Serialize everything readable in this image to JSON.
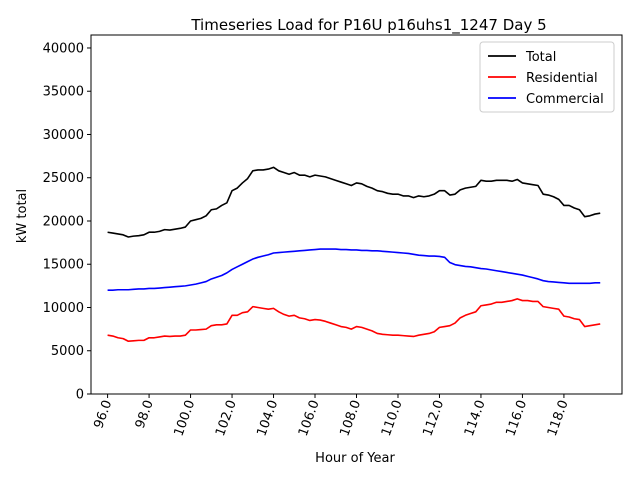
{
  "chart_data": {
    "type": "line",
    "title": "Timeseries Load for P16U p16uhs1_1247  Day 5",
    "xlabel": "Hour of Year",
    "ylabel": "kW total",
    "xlim": [
      95.2,
      120.8
    ],
    "ylim": [
      0,
      41500
    ],
    "x_ticks": [
      96,
      98,
      100,
      102,
      104,
      106,
      108,
      110,
      112,
      114,
      116,
      118
    ],
    "x_tick_labels": [
      "96.0",
      "98.0",
      "100.0",
      "102.0",
      "104.0",
      "106.0",
      "108.0",
      "110.0",
      "112.0",
      "114.0",
      "116.0",
      "118.0"
    ],
    "y_ticks": [
      0,
      5000,
      10000,
      15000,
      20000,
      25000,
      30000,
      35000,
      40000
    ],
    "y_tick_labels": [
      "0",
      "5000",
      "10000",
      "15000",
      "20000",
      "25000",
      "30000",
      "35000",
      "40000"
    ],
    "legend_position": "top-right",
    "series": [
      {
        "name": "Total",
        "color": "#000000",
        "points": [
          [
            96.0,
            18700
          ],
          [
            96.25,
            18600
          ],
          [
            96.5,
            18500
          ],
          [
            96.75,
            18400
          ],
          [
            97.0,
            18150
          ],
          [
            97.25,
            18250
          ],
          [
            97.5,
            18300
          ],
          [
            97.75,
            18400
          ],
          [
            98.0,
            18700
          ],
          [
            98.25,
            18700
          ],
          [
            98.5,
            18800
          ],
          [
            98.75,
            19000
          ],
          [
            99.0,
            18950
          ],
          [
            99.25,
            19050
          ],
          [
            99.5,
            19150
          ],
          [
            99.75,
            19300
          ],
          [
            100.0,
            20000
          ],
          [
            100.25,
            20150
          ],
          [
            100.5,
            20300
          ],
          [
            100.75,
            20600
          ],
          [
            101.0,
            21300
          ],
          [
            101.25,
            21400
          ],
          [
            101.5,
            21800
          ],
          [
            101.75,
            22100
          ],
          [
            102.0,
            23500
          ],
          [
            102.25,
            23800
          ],
          [
            102.5,
            24400
          ],
          [
            102.75,
            24900
          ],
          [
            103.0,
            25800
          ],
          [
            103.25,
            25900
          ],
          [
            103.5,
            25900
          ],
          [
            103.75,
            26000
          ],
          [
            104.0,
            26200
          ],
          [
            104.25,
            25800
          ],
          [
            104.5,
            25600
          ],
          [
            104.75,
            25400
          ],
          [
            105.0,
            25600
          ],
          [
            105.25,
            25300
          ],
          [
            105.5,
            25300
          ],
          [
            105.75,
            25100
          ],
          [
            106.0,
            25300
          ],
          [
            106.25,
            25200
          ],
          [
            106.5,
            25100
          ],
          [
            106.75,
            24900
          ],
          [
            107.0,
            24700
          ],
          [
            107.25,
            24500
          ],
          [
            107.5,
            24300
          ],
          [
            107.75,
            24100
          ],
          [
            108.0,
            24400
          ],
          [
            108.25,
            24300
          ],
          [
            108.5,
            24000
          ],
          [
            108.75,
            23800
          ],
          [
            109.0,
            23500
          ],
          [
            109.25,
            23400
          ],
          [
            109.5,
            23200
          ],
          [
            109.75,
            23100
          ],
          [
            110.0,
            23100
          ],
          [
            110.25,
            22900
          ],
          [
            110.5,
            22900
          ],
          [
            110.75,
            22700
          ],
          [
            111.0,
            22900
          ],
          [
            111.25,
            22800
          ],
          [
            111.5,
            22900
          ],
          [
            111.75,
            23100
          ],
          [
            112.0,
            23500
          ],
          [
            112.25,
            23500
          ],
          [
            112.5,
            23000
          ],
          [
            112.75,
            23100
          ],
          [
            113.0,
            23600
          ],
          [
            113.25,
            23800
          ],
          [
            113.5,
            23900
          ],
          [
            113.75,
            24000
          ],
          [
            114.0,
            24700
          ],
          [
            114.25,
            24600
          ],
          [
            114.5,
            24600
          ],
          [
            114.75,
            24700
          ],
          [
            115.0,
            24700
          ],
          [
            115.25,
            24700
          ],
          [
            115.5,
            24600
          ],
          [
            115.75,
            24800
          ],
          [
            116.0,
            24400
          ],
          [
            116.25,
            24300
          ],
          [
            116.5,
            24200
          ],
          [
            116.75,
            24100
          ],
          [
            117.0,
            23100
          ],
          [
            117.25,
            23000
          ],
          [
            117.5,
            22800
          ],
          [
            117.75,
            22500
          ],
          [
            118.0,
            21800
          ],
          [
            118.25,
            21800
          ],
          [
            118.5,
            21500
          ],
          [
            118.75,
            21300
          ],
          [
            119.0,
            20500
          ],
          [
            119.25,
            20600
          ],
          [
            119.5,
            20800
          ],
          [
            119.75,
            20900
          ]
        ]
      },
      {
        "name": "Residential",
        "color": "#ff0000",
        "points": [
          [
            96.0,
            6800
          ],
          [
            96.25,
            6700
          ],
          [
            96.5,
            6500
          ],
          [
            96.75,
            6400
          ],
          [
            97.0,
            6100
          ],
          [
            97.25,
            6150
          ],
          [
            97.5,
            6200
          ],
          [
            97.75,
            6200
          ],
          [
            98.0,
            6500
          ],
          [
            98.25,
            6500
          ],
          [
            98.5,
            6600
          ],
          [
            98.75,
            6700
          ],
          [
            99.0,
            6650
          ],
          [
            99.25,
            6700
          ],
          [
            99.5,
            6700
          ],
          [
            99.75,
            6800
          ],
          [
            100.0,
            7400
          ],
          [
            100.25,
            7400
          ],
          [
            100.5,
            7450
          ],
          [
            100.75,
            7500
          ],
          [
            101.0,
            7900
          ],
          [
            101.25,
            8000
          ],
          [
            101.5,
            8000
          ],
          [
            101.75,
            8100
          ],
          [
            102.0,
            9100
          ],
          [
            102.25,
            9100
          ],
          [
            102.5,
            9400
          ],
          [
            102.75,
            9500
          ],
          [
            103.0,
            10100
          ],
          [
            103.25,
            10000
          ],
          [
            103.5,
            9900
          ],
          [
            103.75,
            9800
          ],
          [
            104.0,
            9900
          ],
          [
            104.25,
            9500
          ],
          [
            104.5,
            9200
          ],
          [
            104.75,
            9000
          ],
          [
            105.0,
            9100
          ],
          [
            105.25,
            8800
          ],
          [
            105.5,
            8700
          ],
          [
            105.75,
            8500
          ],
          [
            106.0,
            8600
          ],
          [
            106.25,
            8550
          ],
          [
            106.5,
            8400
          ],
          [
            106.75,
            8200
          ],
          [
            107.0,
            8000
          ],
          [
            107.25,
            7800
          ],
          [
            107.5,
            7700
          ],
          [
            107.75,
            7500
          ],
          [
            108.0,
            7800
          ],
          [
            108.25,
            7700
          ],
          [
            108.5,
            7500
          ],
          [
            108.75,
            7300
          ],
          [
            109.0,
            7000
          ],
          [
            109.25,
            6900
          ],
          [
            109.5,
            6850
          ],
          [
            109.75,
            6800
          ],
          [
            110.0,
            6800
          ],
          [
            110.25,
            6750
          ],
          [
            110.5,
            6700
          ],
          [
            110.75,
            6650
          ],
          [
            111.0,
            6800
          ],
          [
            111.25,
            6900
          ],
          [
            111.5,
            7000
          ],
          [
            111.75,
            7200
          ],
          [
            112.0,
            7700
          ],
          [
            112.25,
            7800
          ],
          [
            112.5,
            7900
          ],
          [
            112.75,
            8200
          ],
          [
            113.0,
            8800
          ],
          [
            113.25,
            9100
          ],
          [
            113.5,
            9300
          ],
          [
            113.75,
            9500
          ],
          [
            114.0,
            10200
          ],
          [
            114.25,
            10300
          ],
          [
            114.5,
            10400
          ],
          [
            114.75,
            10600
          ],
          [
            115.0,
            10600
          ],
          [
            115.25,
            10700
          ],
          [
            115.5,
            10800
          ],
          [
            115.75,
            11000
          ],
          [
            116.0,
            10800
          ],
          [
            116.25,
            10800
          ],
          [
            116.5,
            10700
          ],
          [
            116.75,
            10700
          ],
          [
            117.0,
            10100
          ],
          [
            117.25,
            10000
          ],
          [
            117.5,
            9900
          ],
          [
            117.75,
            9800
          ],
          [
            118.0,
            9000
          ],
          [
            118.25,
            8900
          ],
          [
            118.5,
            8700
          ],
          [
            118.75,
            8600
          ],
          [
            119.0,
            7800
          ],
          [
            119.25,
            7900
          ],
          [
            119.5,
            8000
          ],
          [
            119.75,
            8100
          ]
        ]
      },
      {
        "name": "Commercial",
        "color": "#0000ff",
        "points": [
          [
            96.0,
            12000
          ],
          [
            96.25,
            12000
          ],
          [
            96.5,
            12050
          ],
          [
            96.75,
            12050
          ],
          [
            97.0,
            12050
          ],
          [
            97.25,
            12100
          ],
          [
            97.5,
            12150
          ],
          [
            97.75,
            12150
          ],
          [
            98.0,
            12200
          ],
          [
            98.25,
            12200
          ],
          [
            98.5,
            12250
          ],
          [
            98.75,
            12300
          ],
          [
            99.0,
            12350
          ],
          [
            99.25,
            12400
          ],
          [
            99.5,
            12450
          ],
          [
            99.75,
            12500
          ],
          [
            100.0,
            12600
          ],
          [
            100.25,
            12700
          ],
          [
            100.5,
            12850
          ],
          [
            100.75,
            13000
          ],
          [
            101.0,
            13300
          ],
          [
            101.25,
            13500
          ],
          [
            101.5,
            13700
          ],
          [
            101.75,
            14000
          ],
          [
            102.0,
            14400
          ],
          [
            102.25,
            14700
          ],
          [
            102.5,
            15000
          ],
          [
            102.75,
            15300
          ],
          [
            103.0,
            15600
          ],
          [
            103.25,
            15800
          ],
          [
            103.5,
            15950
          ],
          [
            103.75,
            16100
          ],
          [
            104.0,
            16300
          ],
          [
            104.25,
            16350
          ],
          [
            104.5,
            16400
          ],
          [
            104.75,
            16450
          ],
          [
            105.0,
            16500
          ],
          [
            105.25,
            16550
          ],
          [
            105.5,
            16600
          ],
          [
            105.75,
            16650
          ],
          [
            106.0,
            16700
          ],
          [
            106.25,
            16750
          ],
          [
            106.5,
            16750
          ],
          [
            106.75,
            16750
          ],
          [
            107.0,
            16750
          ],
          [
            107.25,
            16700
          ],
          [
            107.5,
            16700
          ],
          [
            107.75,
            16650
          ],
          [
            108.0,
            16650
          ],
          [
            108.25,
            16600
          ],
          [
            108.5,
            16600
          ],
          [
            108.75,
            16550
          ],
          [
            109.0,
            16550
          ],
          [
            109.25,
            16500
          ],
          [
            109.5,
            16450
          ],
          [
            109.75,
            16400
          ],
          [
            110.0,
            16350
          ],
          [
            110.25,
            16300
          ],
          [
            110.5,
            16250
          ],
          [
            110.75,
            16150
          ],
          [
            111.0,
            16050
          ],
          [
            111.25,
            16000
          ],
          [
            111.5,
            15950
          ],
          [
            111.75,
            15950
          ],
          [
            112.0,
            15900
          ],
          [
            112.25,
            15800
          ],
          [
            112.5,
            15200
          ],
          [
            112.75,
            14950
          ],
          [
            113.0,
            14850
          ],
          [
            113.25,
            14750
          ],
          [
            113.5,
            14700
          ],
          [
            113.75,
            14600
          ],
          [
            114.0,
            14500
          ],
          [
            114.25,
            14450
          ],
          [
            114.5,
            14350
          ],
          [
            114.75,
            14250
          ],
          [
            115.0,
            14150
          ],
          [
            115.25,
            14050
          ],
          [
            115.5,
            13950
          ],
          [
            115.75,
            13850
          ],
          [
            116.0,
            13750
          ],
          [
            116.25,
            13600
          ],
          [
            116.5,
            13450
          ],
          [
            116.75,
            13300
          ],
          [
            117.0,
            13100
          ],
          [
            117.25,
            13000
          ],
          [
            117.5,
            12950
          ],
          [
            117.75,
            12900
          ],
          [
            118.0,
            12850
          ],
          [
            118.25,
            12800
          ],
          [
            118.5,
            12800
          ],
          [
            118.75,
            12800
          ],
          [
            119.0,
            12800
          ],
          [
            119.25,
            12800
          ],
          [
            119.5,
            12850
          ],
          [
            119.75,
            12850
          ]
        ]
      }
    ]
  }
}
